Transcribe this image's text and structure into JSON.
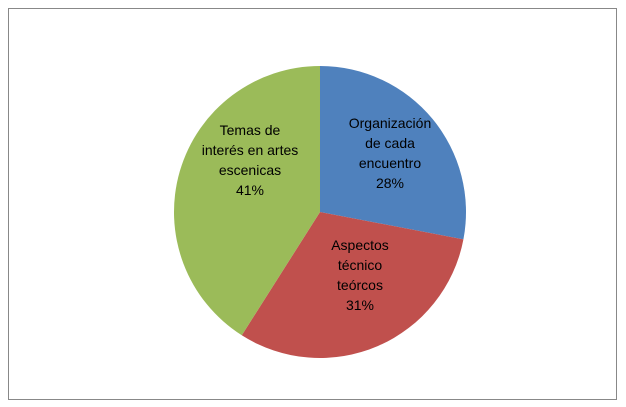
{
  "chart_data": {
    "type": "pie",
    "categories": [
      "Organización de cada encuentro",
      "Aspectos técnico teórcos",
      "Temas de interés en artes escenicas"
    ],
    "values": [
      28,
      31,
      41
    ],
    "value_labels": [
      "28%",
      "31%",
      "41%"
    ],
    "colors": [
      "#4f81bd",
      "#c0504d",
      "#9bbb59"
    ]
  }
}
